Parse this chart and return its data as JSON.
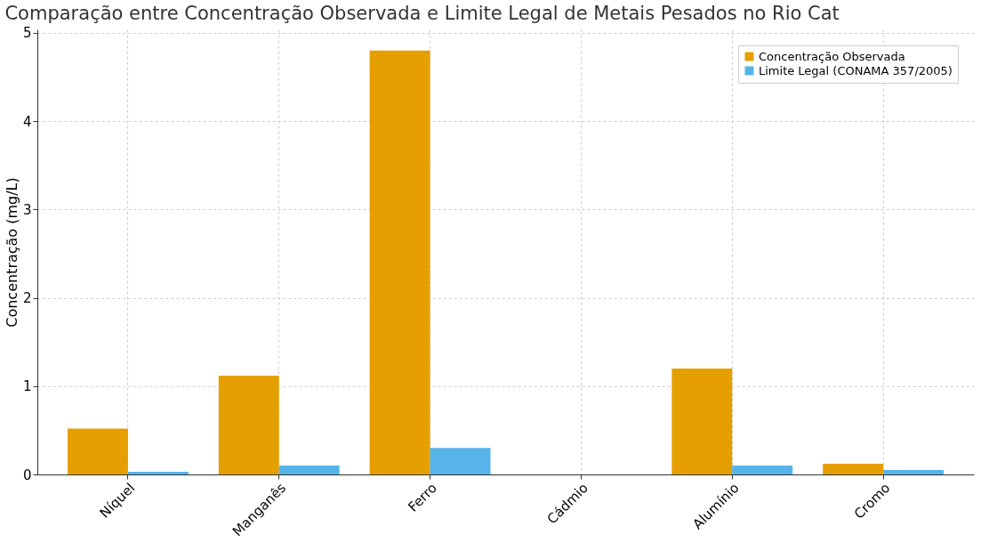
{
  "chart_data": {
    "type": "bar",
    "title": "Comparação entre Concentração Observada e Limite Legal de Metais Pesados no Rio Cat",
    "ylabel": "Concentração (mg/L)",
    "categories": [
      "Níquel",
      "Manganês",
      "Ferro",
      "Cádmio",
      "Alumínio",
      "Cromo"
    ],
    "series": [
      {
        "name": "Concentração Observada",
        "color": "#e69f00",
        "values": [
          0.52,
          1.12,
          4.8,
          0,
          1.2,
          0.12
        ]
      },
      {
        "name": "Limite Legal (CONAMA 357/2005)",
        "color": "#56b4e9",
        "values": [
          0.03,
          0.1,
          0.3,
          0,
          0.1,
          0.05
        ]
      }
    ],
    "ylim": [
      0,
      5.04
    ],
    "yticks": [
      0,
      1,
      2,
      3,
      4,
      5
    ],
    "grid": true,
    "legend": "top right"
  }
}
